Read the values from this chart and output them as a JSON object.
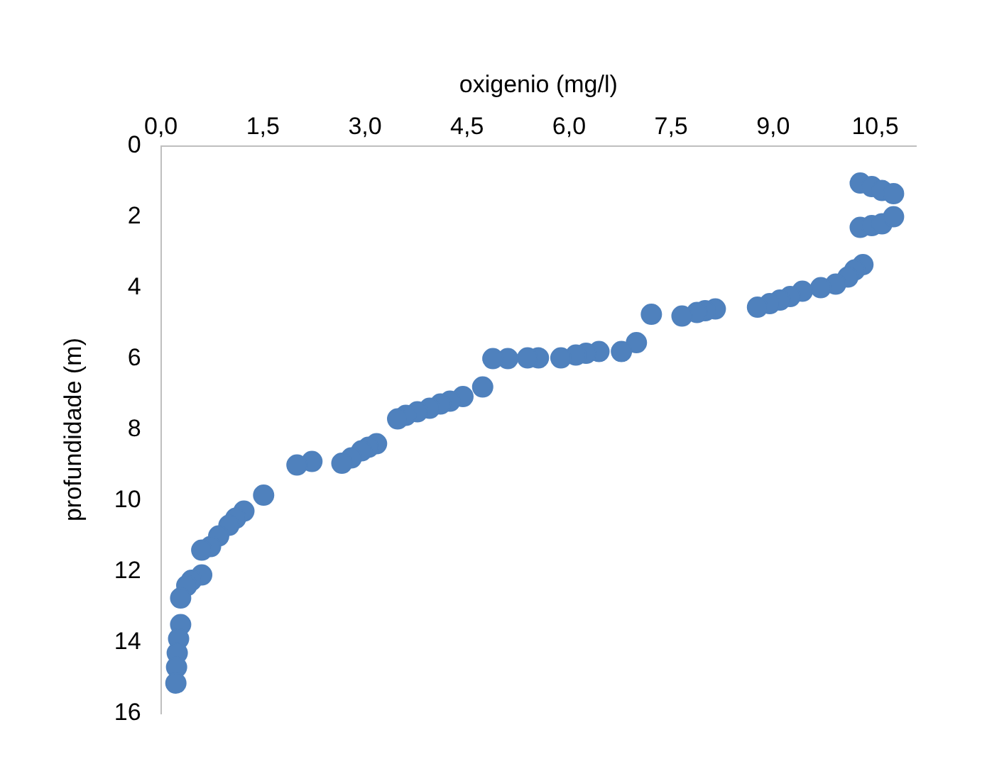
{
  "chart_data": {
    "type": "scatter",
    "xlabel": "oxigenio (mg/l)",
    "ylabel": "profundidade (m)",
    "x": [
      10.28,
      10.45,
      10.6,
      10.77,
      10.28,
      10.45,
      10.6,
      10.77,
      10.32,
      10.2,
      10.1,
      9.92,
      9.7,
      9.43,
      9.25,
      9.1,
      8.95,
      8.77,
      8.15,
      8.0,
      7.88,
      7.66,
      7.21,
      6.99,
      6.77,
      6.44,
      6.25,
      6.1,
      5.88,
      5.55,
      5.39,
      5.1,
      4.88,
      4.73,
      4.44,
      4.25,
      4.11,
      3.95,
      3.77,
      3.6,
      3.48,
      3.17,
      3.05,
      2.95,
      2.8,
      2.66,
      2.22,
      2.0,
      1.51,
      1.22,
      1.1,
      1.0,
      0.85,
      0.73,
      0.6,
      0.6,
      0.45,
      0.38,
      0.29,
      0.29,
      0.26,
      0.24,
      0.23,
      0.22
    ],
    "series": [
      {
        "color": "#4f81bd",
        "values": [
          1.05,
          1.15,
          1.26,
          1.35,
          2.3,
          2.25,
          2.2,
          2.0,
          3.35,
          3.5,
          3.7,
          3.9,
          4.0,
          4.1,
          4.25,
          4.35,
          4.45,
          4.55,
          4.6,
          4.65,
          4.7,
          4.8,
          4.75,
          5.55,
          5.8,
          5.8,
          5.85,
          5.9,
          5.98,
          5.98,
          5.98,
          6.0,
          6.0,
          6.8,
          7.07,
          7.2,
          7.28,
          7.4,
          7.5,
          7.6,
          7.7,
          8.4,
          8.5,
          8.6,
          8.8,
          8.95,
          8.9,
          9.0,
          9.85,
          10.3,
          10.5,
          10.7,
          11.0,
          11.3,
          11.4,
          12.1,
          12.25,
          12.4,
          12.75,
          13.5,
          13.9,
          14.3,
          14.7,
          15.15
        ]
      }
    ],
    "xlim": [
      0,
      11.1
    ],
    "xticks": [
      {
        "value": 0,
        "label": "0,0"
      },
      {
        "value": 1.5,
        "label": "1,5"
      },
      {
        "value": 3,
        "label": "3,0"
      },
      {
        "value": 4.5,
        "label": "4,5"
      },
      {
        "value": 6,
        "label": "6,0"
      },
      {
        "value": 7.5,
        "label": "7,5"
      },
      {
        "value": 9,
        "label": "9,0"
      },
      {
        "value": 10.5,
        "label": "10,5"
      }
    ],
    "ylim": [
      16,
      0
    ],
    "yticks": [
      0,
      2,
      4,
      6,
      8,
      10,
      12,
      14,
      16
    ],
    "grid": false,
    "legend": false,
    "marker": "circle"
  }
}
